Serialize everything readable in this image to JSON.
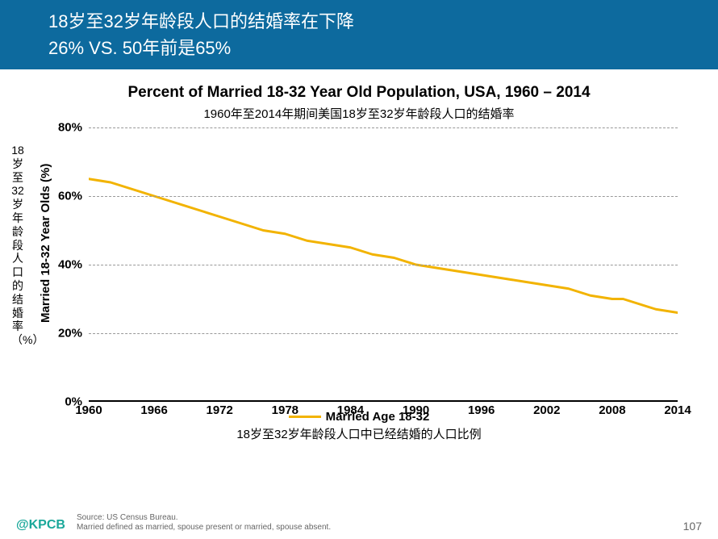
{
  "header": {
    "bg_color": "#0d6a9e",
    "line1": "18岁至32岁年龄段人口的结婚率在下降",
    "line2": "26% VS. 50年前是65%"
  },
  "chart": {
    "type": "line",
    "title_en": "Percent of Married 18-32 Year Old Population, USA, 1960 – 2014",
    "title_cn": "1960年至2014年期间美国18岁至32岁年龄段人口的结婚率",
    "y_label_en": "Married 18-32 Year Olds (%)",
    "y_label_cn": "18岁至32岁年龄段人口的结婚率（%）",
    "ylim": [
      0,
      80
    ],
    "ytick_step": 20,
    "yticks": [
      "0%",
      "20%",
      "40%",
      "60%",
      "80%"
    ],
    "xlim": [
      1960,
      2014
    ],
    "xticks": [
      1960,
      1966,
      1972,
      1978,
      1984,
      1990,
      1996,
      2002,
      2008,
      2014
    ],
    "grid_color": "#999999",
    "line_color": "#f2b300",
    "line_width": 3,
    "background_color": "#ffffff",
    "series": {
      "name": "Married Age 18-32",
      "data": [
        {
          "x": 1960,
          "y": 65
        },
        {
          "x": 1962,
          "y": 64
        },
        {
          "x": 1964,
          "y": 62
        },
        {
          "x": 1966,
          "y": 60
        },
        {
          "x": 1968,
          "y": 58
        },
        {
          "x": 1970,
          "y": 56
        },
        {
          "x": 1972,
          "y": 54
        },
        {
          "x": 1974,
          "y": 52
        },
        {
          "x": 1976,
          "y": 50
        },
        {
          "x": 1978,
          "y": 49
        },
        {
          "x": 1980,
          "y": 47
        },
        {
          "x": 1982,
          "y": 46
        },
        {
          "x": 1984,
          "y": 45
        },
        {
          "x": 1986,
          "y": 43
        },
        {
          "x": 1988,
          "y": 42
        },
        {
          "x": 1990,
          "y": 40
        },
        {
          "x": 1992,
          "y": 39
        },
        {
          "x": 1994,
          "y": 38
        },
        {
          "x": 1996,
          "y": 37
        },
        {
          "x": 1998,
          "y": 36
        },
        {
          "x": 2000,
          "y": 35
        },
        {
          "x": 2002,
          "y": 34
        },
        {
          "x": 2004,
          "y": 33
        },
        {
          "x": 2006,
          "y": 31
        },
        {
          "x": 2008,
          "y": 30
        },
        {
          "x": 2009,
          "y": 30
        },
        {
          "x": 2010,
          "y": 29
        },
        {
          "x": 2012,
          "y": 27
        },
        {
          "x": 2014,
          "y": 26
        }
      ]
    },
    "legend_en": "Married Age 18-32",
    "legend_cn": "18岁至32岁年龄段人口中已经结婚的人口比例"
  },
  "footer": {
    "brand": "@KPCB",
    "source1": "Source: US Census Bureau.",
    "source2": "Married defined as married, spouse present or married, spouse absent.",
    "page": "107"
  }
}
